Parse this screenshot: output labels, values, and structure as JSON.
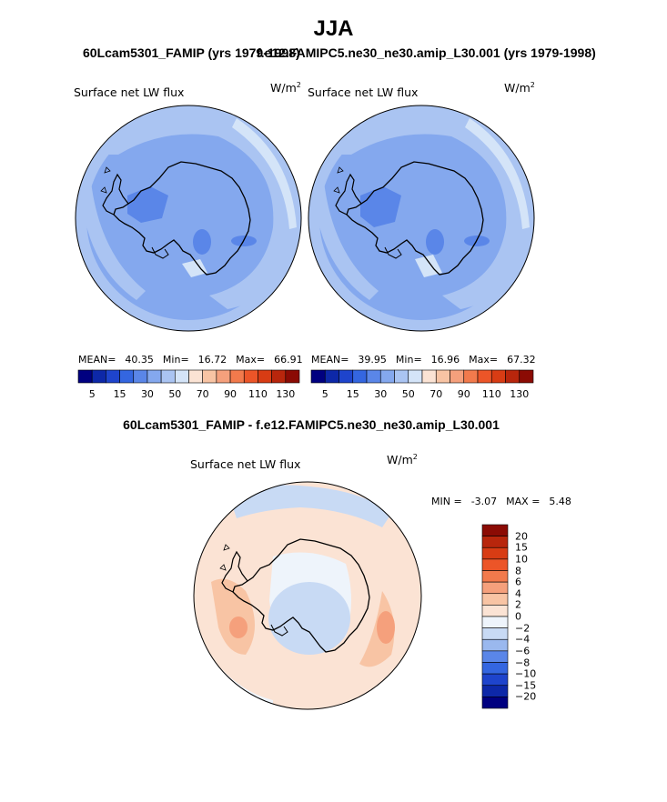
{
  "header": {
    "season": "JJA",
    "case_left": "60Lcam5301_FAMIP (yrs 1979-1998)",
    "case_right": "f.e12.FAMIPC5.ne30_ne30.amip_L30.001 (yrs 1979-1998)"
  },
  "chart_data": [
    {
      "type": "heatmap",
      "projection": "south-polar-stereographic",
      "case": "60Lcam5301_FAMIP (yrs 1979-1998)",
      "title": "Surface net LW flux",
      "units_base": "W/m",
      "units_exp": "2",
      "stats": {
        "mean_label": "MEAN=",
        "mean": "40.35",
        "min_label": "Min=",
        "min": "16.72",
        "max_label": "Max=",
        "max": "66.91"
      },
      "colorbar": {
        "ticks": [
          "5",
          "15",
          "30",
          "50",
          "70",
          "90",
          "110",
          "130"
        ],
        "colors": [
          "#000080",
          "#0d28a8",
          "#1e44cc",
          "#3466e0",
          "#5a86e8",
          "#84a8ee",
          "#aac4f2",
          "#d4e4f8",
          "#fbe3d4",
          "#f8c4a4",
          "#f5a07c",
          "#f27a4c",
          "#ec5528",
          "#d83c14",
          "#b8260c",
          "#8b0b04"
        ]
      }
    },
    {
      "type": "heatmap",
      "projection": "south-polar-stereographic",
      "case": "f.e12.FAMIPC5.ne30_ne30.amip_L30.001 (yrs 1979-1998)",
      "title": "Surface net LW flux",
      "units_base": "W/m",
      "units_exp": "2",
      "stats": {
        "mean_label": "MEAN=",
        "mean": "39.95",
        "min_label": "Min=",
        "min": "16.96",
        "max_label": "Max=",
        "max": "67.32"
      },
      "colorbar": {
        "ticks": [
          "5",
          "15",
          "30",
          "50",
          "70",
          "90",
          "110",
          "130"
        ],
        "colors": [
          "#000080",
          "#0d28a8",
          "#1e44cc",
          "#3466e0",
          "#5a86e8",
          "#84a8ee",
          "#aac4f2",
          "#d4e4f8",
          "#fbe3d4",
          "#f8c4a4",
          "#f5a07c",
          "#f27a4c",
          "#ec5528",
          "#d83c14",
          "#b8260c",
          "#8b0b04"
        ]
      }
    },
    {
      "type": "heatmap",
      "projection": "south-polar-stereographic",
      "case": "60Lcam5301_FAMIP - f.e12.FAMIPC5.ne30_ne30.amip_L30.001",
      "title": "Surface net LW flux",
      "units_base": "W/m",
      "units_exp": "2",
      "stats": {
        "min_label": "MIN =",
        "min": "-3.07",
        "max_label": "MAX =",
        "max": "5.48"
      },
      "colorbar": {
        "labels": [
          "20",
          "15",
          "10",
          "8",
          "6",
          "4",
          "2",
          "0",
          "−2",
          "−4",
          "−6",
          "−8",
          "−10",
          "−15",
          "−20"
        ],
        "colors": [
          "#8b0b04",
          "#b8260c",
          "#d83c14",
          "#ec5528",
          "#f27a4c",
          "#f5a07c",
          "#f8c4a4",
          "#fbe3d4",
          "#eef4fb",
          "#c8daf4",
          "#9ab8ee",
          "#5a86e8",
          "#3466e0",
          "#1e44cc",
          "#0d28a8",
          "#000080"
        ]
      }
    }
  ]
}
